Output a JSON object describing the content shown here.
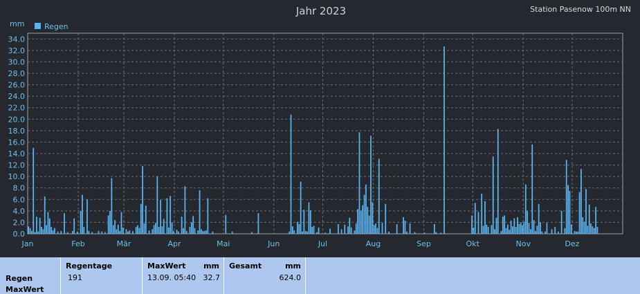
{
  "header": {
    "title": "Jahr 2023",
    "station": "Station Pasenow 100m NN",
    "unit": "mm"
  },
  "legend": {
    "label": "Regen",
    "color": "#5ab4f0"
  },
  "chart_data": {
    "type": "bar",
    "title": "Jahr 2023",
    "ylabel": "mm",
    "ylim": [
      0,
      35
    ],
    "yticks": [
      "0.0",
      "2.0",
      "4.0",
      "6.0",
      "8.0",
      "10.0",
      "12.0",
      "14.0",
      "16.0",
      "18.0",
      "20.0",
      "22.0",
      "24.0",
      "26.0",
      "28.0",
      "30.0",
      "32.0",
      "34.0"
    ],
    "xticks": [
      "Jan",
      "Feb",
      "Mär",
      "Apr",
      "Mai",
      "Jun",
      "Jul",
      "Aug",
      "Sep",
      "Okt",
      "Nov",
      "Dez"
    ],
    "grid": true,
    "legend_position": "top-left",
    "series": [
      {
        "name": "Regen",
        "color": "#5ab4f0",
        "points": [
          [
            1,
            1.3
          ],
          [
            2,
            1.0
          ],
          [
            3,
            0.5
          ],
          [
            4,
            15.0
          ],
          [
            5,
            0.3
          ],
          [
            6,
            3.0
          ],
          [
            7,
            0.4
          ],
          [
            8,
            2.8
          ],
          [
            9,
            1.2
          ],
          [
            10,
            0.8
          ],
          [
            11,
            6.5
          ],
          [
            12,
            1.5
          ],
          [
            13,
            3.8
          ],
          [
            14,
            2.7
          ],
          [
            15,
            1.2
          ],
          [
            16,
            0.6
          ],
          [
            17,
            1.0
          ],
          [
            19,
            0.4
          ],
          [
            21,
            0.5
          ],
          [
            23,
            3.6
          ],
          [
            25,
            0.3
          ],
          [
            28,
            0.5
          ],
          [
            29,
            2.7
          ],
          [
            31,
            0.4
          ],
          [
            33,
            4.0
          ],
          [
            34,
            6.8
          ],
          [
            35,
            1.2
          ],
          [
            37,
            6.0
          ],
          [
            38,
            0.5
          ],
          [
            40,
            0.3
          ],
          [
            44,
            0.5
          ],
          [
            46,
            0.4
          ],
          [
            48,
            0.3
          ],
          [
            50,
            3.2
          ],
          [
            51,
            4.0
          ],
          [
            52,
            9.7
          ],
          [
            53,
            1.5
          ],
          [
            54,
            2.4
          ],
          [
            55,
            0.8
          ],
          [
            56,
            1.6
          ],
          [
            57,
            0.5
          ],
          [
            58,
            3.8
          ],
          [
            59,
            1.1
          ],
          [
            61,
            0.8
          ],
          [
            62,
            0.4
          ],
          [
            63,
            0.6
          ],
          [
            65,
            0.5
          ],
          [
            67,
            1.2
          ],
          [
            68,
            1.5
          ],
          [
            69,
            1.0
          ],
          [
            70,
            5.2
          ],
          [
            71,
            11.8
          ],
          [
            72,
            1.8
          ],
          [
            73,
            4.9
          ],
          [
            75,
            0.6
          ],
          [
            77,
            0.8
          ],
          [
            78,
            1.5
          ],
          [
            79,
            1.9
          ],
          [
            80,
            10.0
          ],
          [
            81,
            1.2
          ],
          [
            82,
            5.9
          ],
          [
            83,
            1.3
          ],
          [
            84,
            2.6
          ],
          [
            86,
            6.2
          ],
          [
            87,
            1.1
          ],
          [
            88,
            6.6
          ],
          [
            89,
            2.0
          ],
          [
            90,
            0.5
          ],
          [
            92,
            0.7
          ],
          [
            93,
            0.4
          ],
          [
            95,
            3.0
          ],
          [
            96,
            1.0
          ],
          [
            97,
            8.3
          ],
          [
            98,
            0.5
          ],
          [
            100,
            1.2
          ],
          [
            101,
            2.0
          ],
          [
            102,
            3.1
          ],
          [
            103,
            1.0
          ],
          [
            105,
            0.6
          ],
          [
            106,
            7.6
          ],
          [
            107,
            0.8
          ],
          [
            108,
            0.5
          ],
          [
            109,
            0.5
          ],
          [
            110,
            0.6
          ],
          [
            111,
            6.2
          ],
          [
            114,
            0.4
          ],
          [
            122,
            3.3
          ],
          [
            126,
            0.4
          ],
          [
            138,
            0.3
          ],
          [
            142,
            3.6
          ],
          [
            161,
            0.4
          ],
          [
            162,
            20.8
          ],
          [
            163,
            1.3
          ],
          [
            164,
            0.6
          ],
          [
            166,
            2.1
          ],
          [
            167,
            1.7
          ],
          [
            168,
            9.1
          ],
          [
            169,
            0.4
          ],
          [
            170,
            4.2
          ],
          [
            171,
            0.5
          ],
          [
            172,
            0.4
          ],
          [
            173,
            5.5
          ],
          [
            174,
            4.1
          ],
          [
            175,
            1.2
          ],
          [
            176,
            1.4
          ],
          [
            178,
            0.3
          ],
          [
            179,
            1.1
          ],
          [
            183,
            0.2
          ],
          [
            186,
            0.9
          ],
          [
            191,
            1.7
          ],
          [
            193,
            0.8
          ],
          [
            195,
            1.6
          ],
          [
            197,
            1.3
          ],
          [
            198,
            2.8
          ],
          [
            199,
            1.1
          ],
          [
            201,
            0.6
          ],
          [
            202,
            1.8
          ],
          [
            203,
            4.3
          ],
          [
            204,
            17.7
          ],
          [
            205,
            4.0
          ],
          [
            206,
            5.0
          ],
          [
            207,
            6.8
          ],
          [
            208,
            8.6
          ],
          [
            209,
            4.7
          ],
          [
            210,
            3.2
          ],
          [
            211,
            17.1
          ],
          [
            212,
            5.5
          ],
          [
            213,
            1.5
          ],
          [
            214,
            1.8
          ],
          [
            215,
            1.0
          ],
          [
            216,
            13.1
          ],
          [
            218,
            1.9
          ],
          [
            220,
            5.2
          ],
          [
            222,
            0.4
          ],
          [
            227,
            1.7
          ],
          [
            231,
            2.9
          ],
          [
            232,
            2.3
          ],
          [
            233,
            0.4
          ],
          [
            235,
            1.8
          ],
          [
            238,
            0.3
          ],
          [
            244,
            0.2
          ],
          [
            250,
            1.7
          ],
          [
            251,
            0.3
          ],
          [
            254,
            0.2
          ],
          [
            256,
            32.7
          ],
          [
            273,
            3.2
          ],
          [
            274,
            1.1
          ],
          [
            275,
            5.4
          ],
          [
            277,
            3.8
          ],
          [
            279,
            7.0
          ],
          [
            280,
            1.4
          ],
          [
            281,
            5.7
          ],
          [
            282,
            1.6
          ],
          [
            283,
            1.2
          ],
          [
            285,
            1.5
          ],
          [
            286,
            13.5
          ],
          [
            287,
            0.8
          ],
          [
            288,
            2.8
          ],
          [
            289,
            18.3
          ],
          [
            291,
            0.5
          ],
          [
            292,
            3.0
          ],
          [
            293,
            3.2
          ],
          [
            294,
            1.0
          ],
          [
            295,
            1.6
          ],
          [
            296,
            0.7
          ],
          [
            297,
            2.3
          ],
          [
            298,
            1.3
          ],
          [
            299,
            2.7
          ],
          [
            300,
            1.2
          ],
          [
            301,
            2.9
          ],
          [
            302,
            1.7
          ],
          [
            303,
            2.0
          ],
          [
            304,
            1.5
          ],
          [
            305,
            2.1
          ],
          [
            306,
            8.6
          ],
          [
            307,
            4.0
          ],
          [
            308,
            1.9
          ],
          [
            309,
            0.8
          ],
          [
            310,
            15.6
          ],
          [
            311,
            2.4
          ],
          [
            312,
            0.5
          ],
          [
            313,
            1.4
          ],
          [
            314,
            5.2
          ],
          [
            315,
            2.0
          ],
          [
            316,
            0.4
          ],
          [
            318,
            0.4
          ],
          [
            319,
            1.9
          ],
          [
            322,
            0.8
          ],
          [
            324,
            1.2
          ],
          [
            326,
            0.4
          ],
          [
            328,
            4.0
          ],
          [
            330,
            1.0
          ],
          [
            331,
            12.9
          ],
          [
            332,
            8.5
          ],
          [
            333,
            7.5
          ],
          [
            334,
            1.6
          ],
          [
            336,
            0.5
          ],
          [
            337,
            0.4
          ],
          [
            338,
            0.4
          ],
          [
            339,
            7.3
          ],
          [
            340,
            11.3
          ],
          [
            341,
            2.9
          ],
          [
            342,
            2.1
          ],
          [
            343,
            7.8
          ],
          [
            344,
            1.4
          ],
          [
            345,
            5.1
          ],
          [
            346,
            1.8
          ],
          [
            347,
            1.3
          ],
          [
            348,
            1.0
          ],
          [
            349,
            4.7
          ],
          [
            350,
            1.2
          ]
        ]
      }
    ]
  },
  "table": {
    "row_labels": [
      "Regen",
      "MaxWert"
    ],
    "columns": [
      {
        "header": "Regentage",
        "unit": "",
        "value": "191",
        "value2": ""
      },
      {
        "header": "MaxWert",
        "unit": "mm",
        "value": "13.09.  05:40",
        "value2": "32.7"
      },
      {
        "header": "Gesamt",
        "unit": "mm",
        "value": "",
        "value2": "624.0"
      }
    ]
  }
}
